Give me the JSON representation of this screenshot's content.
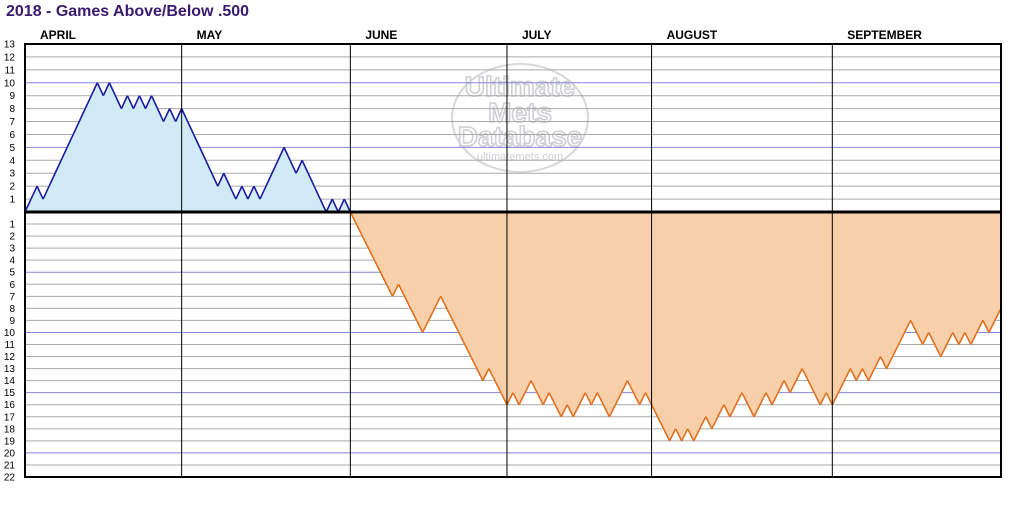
{
  "title": "2018 - Games Above/Below .500",
  "watermark": {
    "line1": "Ultimate",
    "line2": "Mets",
    "line3": "Database",
    "url": "ultimatemets.com"
  },
  "chart_data": {
    "type": "area",
    "title": "2018 - Games Above/Below .500",
    "xlabel": "",
    "ylabel": "",
    "months": [
      "APRIL",
      "MAY",
      "JUNE",
      "JULY",
      "AUGUST",
      "SEPTEMBER"
    ],
    "month_start_game": [
      0,
      26,
      54,
      80,
      104,
      134
    ],
    "total_games": 162,
    "y_above_ticks": [
      1,
      2,
      3,
      4,
      5,
      6,
      7,
      8,
      9,
      10,
      11,
      12,
      13
    ],
    "y_below_ticks": [
      1,
      2,
      3,
      4,
      5,
      6,
      7,
      8,
      9,
      10,
      11,
      12,
      13,
      14,
      15,
      16,
      17,
      18,
      19,
      20,
      21,
      22
    ],
    "ylim": [
      -22,
      13
    ],
    "grid": true,
    "colors": {
      "above_fill": "#d0ebf5",
      "above_line": "#1a1aa0",
      "below_fill": "#f7cfa8",
      "below_line": "#e07020",
      "zero_line": "#000000",
      "grid_line": "#aaaaaa",
      "grid_major": "#8888dd",
      "month_line": "#000000"
    },
    "series": [
      {
        "values": [
          0,
          1,
          2,
          1,
          2,
          3,
          4,
          5,
          6,
          7,
          8,
          9,
          10,
          9,
          10,
          9,
          8,
          9,
          8,
          9,
          8,
          9,
          8,
          7,
          8,
          7,
          8,
          7,
          6,
          5,
          4,
          3,
          2,
          3,
          2,
          1,
          2,
          1,
          2,
          1,
          2,
          3,
          4,
          5,
          4,
          3,
          4,
          3,
          2,
          1,
          0,
          1,
          0,
          1,
          0,
          -1,
          -2,
          -3,
          -4,
          -5,
          -6,
          -7,
          -6,
          -7,
          -8,
          -9,
          -10,
          -9,
          -8,
          -7,
          -8,
          -9,
          -10,
          -11,
          -12,
          -13,
          -14,
          -13,
          -14,
          -15,
          -16,
          -15,
          -16,
          -15,
          -14,
          -15,
          -16,
          -15,
          -16,
          -17,
          -16,
          -17,
          -16,
          -15,
          -16,
          -15,
          -16,
          -17,
          -16,
          -15,
          -14,
          -15,
          -16,
          -15,
          -16,
          -17,
          -18,
          -19,
          -18,
          -19,
          -18,
          -19,
          -18,
          -17,
          -18,
          -17,
          -16,
          -17,
          -16,
          -15,
          -16,
          -17,
          -16,
          -15,
          -16,
          -15,
          -14,
          -15,
          -14,
          -13,
          -14,
          -15,
          -16,
          -15,
          -16,
          -15,
          -14,
          -13,
          -14,
          -13,
          -14,
          -13,
          -12,
          -13,
          -12,
          -11,
          -10,
          -9,
          -10,
          -11,
          -10,
          -11,
          -12,
          -11,
          -10,
          -11,
          -10,
          -11,
          -10,
          -9,
          -10,
          -9,
          -8
        ]
      }
    ]
  }
}
